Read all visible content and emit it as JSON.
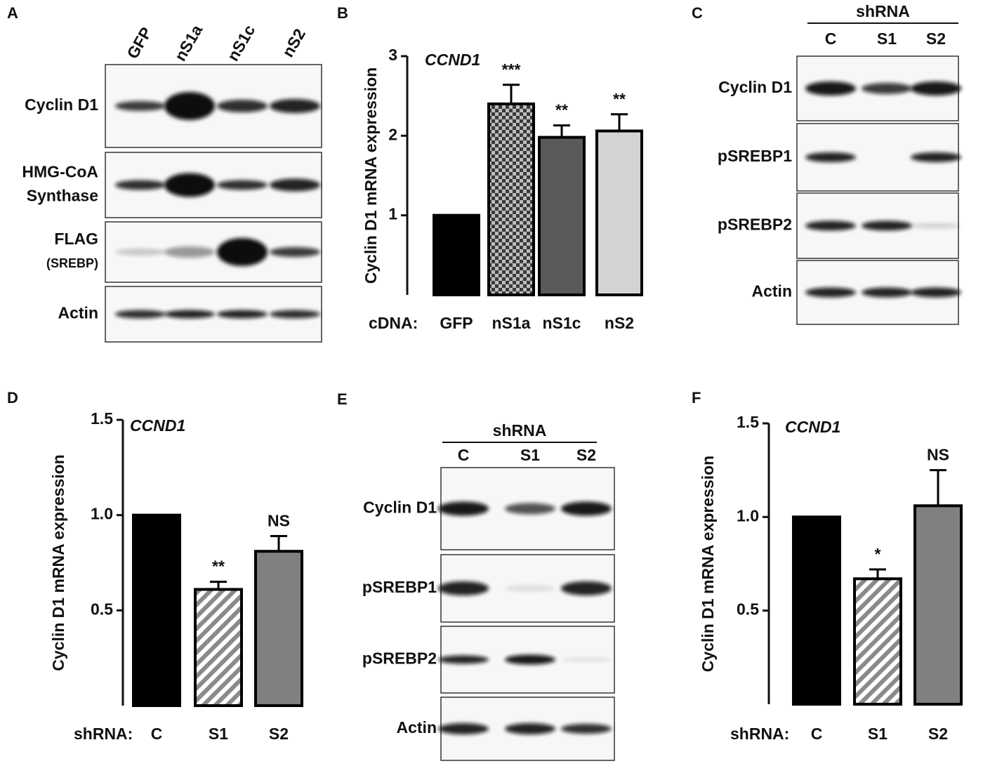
{
  "chart_data": [
    {
      "type": "bar",
      "panel": "B",
      "title": "CCND1",
      "ylabel": "Cyclin D1 mRNA expression",
      "xlabel": "cDNA:",
      "categories": [
        "GFP",
        "nS1a",
        "nS1c",
        "nS2"
      ],
      "values": [
        1,
        2.4,
        1.98,
        2.06
      ],
      "errors": [
        null,
        0.24,
        0.15,
        0.21
      ],
      "annotations": [
        null,
        "***",
        "**",
        "**"
      ],
      "colors": [
        "#000000",
        "#6b6b6b",
        "#5a5a5a",
        "#d3d3d3"
      ],
      "patterns": [
        null,
        "checker",
        null,
        null
      ],
      "ylim": [
        0,
        3
      ],
      "yticks": [
        1,
        2,
        3
      ]
    },
    {
      "type": "bar",
      "panel": "D",
      "title": "CCND1",
      "ylabel": "Cyclin D1 mRNA expression",
      "xlabel": "shRNA:",
      "categories": [
        "C",
        "S1",
        "S2"
      ],
      "values": [
        1,
        0.61,
        0.81
      ],
      "errors": [
        null,
        0.04,
        0.08
      ],
      "annotations": [
        null,
        "**",
        "NS"
      ],
      "colors": [
        "#000000",
        "#8a8a8a",
        "#808080"
      ],
      "patterns": [
        null,
        "stripes",
        null
      ],
      "ylim": [
        0,
        1.5
      ],
      "yticks": [
        0.5,
        {
          "value": 1,
          "label": "1.0"
        },
        1.5
      ]
    },
    {
      "type": "bar",
      "panel": "F",
      "title": "CCND1",
      "ylabel": "Cyclin D1 mRNA expression",
      "xlabel": "shRNA:",
      "categories": [
        "C",
        "S1",
        "S2"
      ],
      "values": [
        1,
        0.67,
        1.06
      ],
      "errors": [
        null,
        0.05,
        0.19
      ],
      "annotations": [
        null,
        "*",
        "NS"
      ],
      "colors": [
        "#000000",
        "#8a8a8a",
        "#808080"
      ],
      "patterns": [
        null,
        "stripes",
        null
      ],
      "ylim": [
        0,
        1.5
      ],
      "yticks": [
        0.5,
        {
          "value": 1,
          "label": "1.0"
        },
        1.5
      ]
    }
  ],
  "blots": [
    {
      "panel": "A",
      "lanes": [
        "GFP",
        "nS1a",
        "nS1c",
        "nS2"
      ],
      "rows": [
        {
          "label": [
            "Cyclin D1"
          ]
        },
        {
          "label": [
            "HMG-CoA",
            "Synthase"
          ]
        },
        {
          "label": [
            "FLAG",
            "(SREBP)"
          ]
        },
        {
          "label": [
            "Actin"
          ]
        }
      ]
    },
    {
      "panel": "C",
      "header": "shRNA",
      "lanes": [
        "C",
        "S1",
        "S2"
      ],
      "rows": [
        {
          "label": [
            "Cyclin D1"
          ]
        },
        {
          "label": [
            "pSREBP1"
          ]
        },
        {
          "label": [
            "pSREBP2"
          ]
        },
        {
          "label": [
            "Actin"
          ]
        }
      ]
    },
    {
      "panel": "E",
      "header": "shRNA",
      "lanes": [
        "C",
        "S1",
        "S2"
      ],
      "rows": [
        {
          "label": [
            "Cyclin D1"
          ]
        },
        {
          "label": [
            "pSREBP1"
          ]
        },
        {
          "label": [
            "pSREBP2"
          ]
        },
        {
          "label": [
            "Actin"
          ]
        }
      ]
    }
  ]
}
